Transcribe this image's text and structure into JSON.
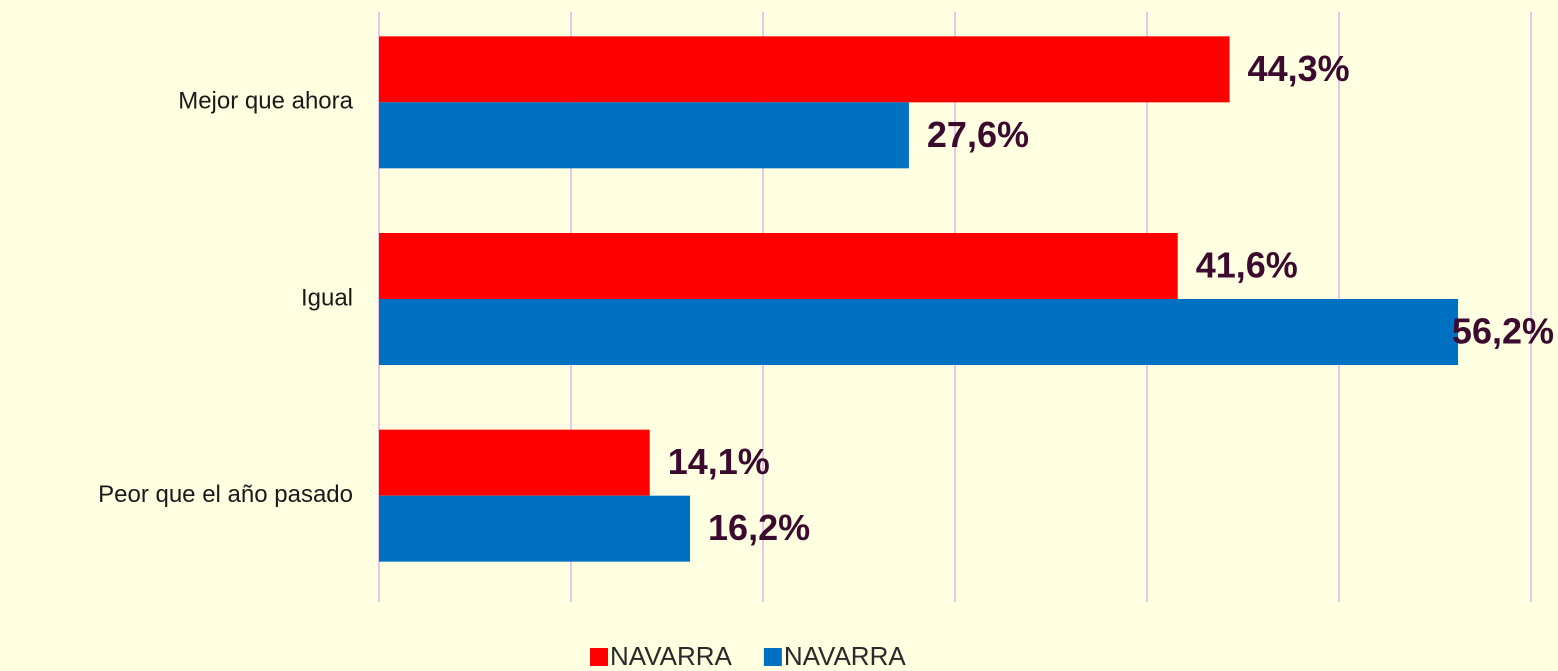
{
  "chart_data": {
    "type": "bar",
    "orientation": "horizontal",
    "categories": [
      "Mejor que ahora",
      "Igual",
      "Peor que el año pasado"
    ],
    "series": [
      {
        "name": "NAVARRA",
        "color": "#ff0000",
        "values": [
          44.3,
          41.6,
          14.1
        ],
        "value_labels": [
          "44,3%",
          "41,6%",
          "14,1%"
        ]
      },
      {
        "name": "NAVARRA",
        "color": "#0070c0",
        "values": [
          27.6,
          56.2,
          16.2
        ],
        "value_labels": [
          "27,6%",
          "56,2%",
          "16,2%"
        ]
      }
    ],
    "xlim": [
      0,
      60
    ],
    "xticks": [
      0,
      10,
      20,
      30,
      40,
      50,
      60
    ],
    "grid": true,
    "legend": "bottom"
  }
}
